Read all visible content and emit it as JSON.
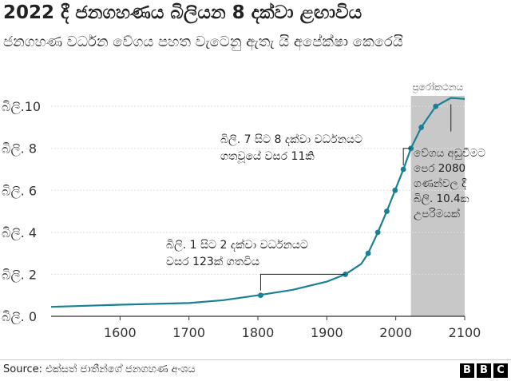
{
  "title": "2022 දී ජනගහණය බිලියන 8 දක්වා ළඟාවිය",
  "subtitle": "ජනගහණ වර්ධන වේගය පහත වැටෙනු ඇතැ යි අපේක්ෂා කෙරෙයි",
  "source": "Source: එක්සත් ජාතීන්ගේ ජනගහණ අංශය",
  "logo_letters": [
    "B",
    "B",
    "C"
  ],
  "colors": {
    "line": "#1a8095",
    "projection_band": "#c8c8c8",
    "axis": "#333333",
    "grid": "#dddddd"
  },
  "chart_data": {
    "type": "line",
    "title": "2022 දී ජනගහණය බිලියන 8 දක්වා ළඟාවිය",
    "xlim": [
      1500,
      2100
    ],
    "ylim": [
      0,
      10.5
    ],
    "x_ticks": [
      1600,
      1700,
      1800,
      1900,
      2000,
      2100
    ],
    "y_ticks": [
      {
        "value": 0,
        "label": "බිලි. 0"
      },
      {
        "value": 2,
        "label": "බිලි. 2"
      },
      {
        "value": 4,
        "label": "බිලි. 4"
      },
      {
        "value": 6,
        "label": "බිලි. 6"
      },
      {
        "value": 8,
        "label": "බිලි. 8"
      },
      {
        "value": 10,
        "label": "බිලි.10"
      }
    ],
    "grid": "horizontal",
    "series": [
      {
        "x": [
          1500,
          1600,
          1700,
          1750,
          1800,
          1850,
          1900,
          1927,
          1950,
          1960,
          1974,
          1987,
          1999,
          2011,
          2022,
          2037,
          2058,
          2080,
          2090,
          2100
        ],
        "y": [
          0.45,
          0.55,
          0.63,
          0.77,
          1.0,
          1.26,
          1.65,
          2.0,
          2.5,
          3.0,
          4.0,
          5.0,
          6.0,
          7.0,
          8.0,
          9.0,
          10.0,
          10.4,
          10.38,
          10.35
        ]
      }
    ],
    "markers": [
      {
        "x": 1804,
        "y": 1.0
      },
      {
        "x": 1927,
        "y": 2.0
      },
      {
        "x": 1960,
        "y": 3.0
      },
      {
        "x": 1974,
        "y": 4.0
      },
      {
        "x": 1987,
        "y": 5.0
      },
      {
        "x": 1999,
        "y": 6.0
      },
      {
        "x": 2011,
        "y": 7.0
      },
      {
        "x": 2022,
        "y": 8.0
      },
      {
        "x": 2037,
        "y": 9.0
      },
      {
        "x": 2058,
        "y": 10.0
      }
    ],
    "projection": {
      "label": "ප්‍රරෝකථනය",
      "x_start": 2022,
      "x_end": 2100
    },
    "annotations": [
      {
        "lines": [
          "බිලි. 1 සිට 2 දක්වා වර්ධනයට",
          "වසර 123ක් ගතවිය"
        ],
        "from_x": 1804,
        "to_x": 1927,
        "at_y": 2.0
      },
      {
        "lines": [
          "බිලි. 7 සිට 8 දක්වා වර්ධනයට",
          "ගතවූයේ වසර 11කි"
        ],
        "from_x": 2011,
        "to_x": 2022,
        "at_y": 8.0
      },
      {
        "lines": [
          "වේගය අඩුවීමට",
          "පෙර 2080",
          "ගණන්වල දී",
          "බිලි. 10.4ක",
          "උපරිමයක්"
        ],
        "x": 2080,
        "y": 10.4
      }
    ]
  }
}
